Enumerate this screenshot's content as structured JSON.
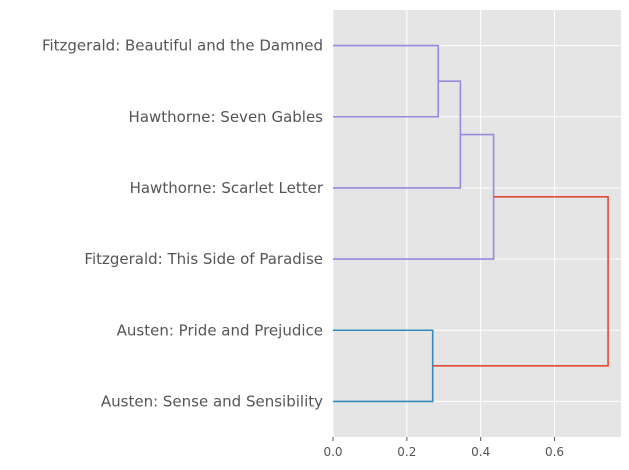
{
  "chart_data": {
    "type": "dendrogram",
    "orientation": "left",
    "title": "",
    "xlabel": "",
    "ylabel": "",
    "xlim": [
      0,
      0.78
    ],
    "xticks": [
      0.0,
      0.2,
      0.4,
      0.6
    ],
    "xtick_labels": [
      "0.0",
      "0.2",
      "0.4",
      "0.6"
    ],
    "grid": true,
    "leaves": [
      "Fitzgerald: Beautiful and the Damned",
      "Hawthorne: Seven Gables",
      "Hawthorne: Scarlet Letter",
      "Fitzgerald: This Side of Paradise",
      "Austen: Pride and Prejudice",
      "Austen: Sense and Sensibility"
    ],
    "merges": [
      {
        "id": "m1",
        "left": "L0",
        "right": "L1",
        "height": 0.285,
        "color": "#9988dd"
      },
      {
        "id": "m2",
        "left": "m1",
        "right": "L2",
        "height": 0.345,
        "color": "#9988dd"
      },
      {
        "id": "m3",
        "left": "m2",
        "right": "L3",
        "height": 0.435,
        "color": "#9988dd"
      },
      {
        "id": "m4",
        "left": "L4",
        "right": "L5",
        "height": 0.27,
        "color": "#348abd"
      },
      {
        "id": "m5",
        "left": "m3",
        "right": "m4",
        "height": 0.745,
        "color": "#e24a33"
      }
    ],
    "colors": {
      "background": "#e5e5e5",
      "grid": "#ffffff",
      "cluster_fitzgerald_hawthorne": "#9988dd",
      "cluster_austen": "#348abd",
      "root_link": "#e24a33"
    }
  }
}
